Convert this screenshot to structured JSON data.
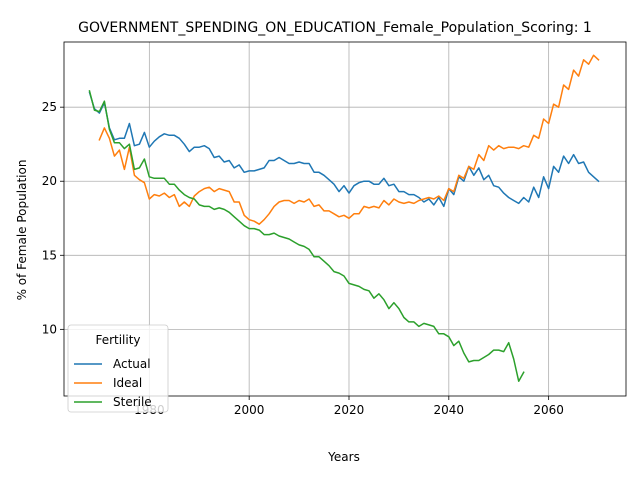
{
  "chart_data": {
    "type": "line",
    "title": "GOVERNMENT_SPENDING_ON_EDUCATION_Female_Population_Scoring: 1",
    "xlabel": "Years",
    "ylabel": "% of Female Population",
    "xlim": [
      1962.9,
      2075.5
    ],
    "ylim": [
      5.5,
      29.4
    ],
    "xticks": [
      1980,
      2000,
      2020,
      2040,
      2060
    ],
    "yticks": [
      10,
      15,
      20,
      25
    ],
    "grid": true,
    "legend": {
      "title": "Fertility",
      "placement": "lower-left"
    },
    "series": [
      {
        "name": "Actual",
        "color": "#1f77b4",
        "x": [
          1968,
          1969,
          1970,
          1971,
          1972,
          1973,
          1974,
          1975,
          1976,
          1977,
          1978,
          1979,
          1980,
          1981,
          1982,
          1983,
          1984,
          1985,
          1986,
          1987,
          1988,
          1989,
          1990,
          1991,
          1992,
          1993,
          1994,
          1995,
          1996,
          1997,
          1998,
          1999,
          2000,
          2001,
          2002,
          2003,
          2004,
          2005,
          2006,
          2007,
          2008,
          2009,
          2010,
          2011,
          2012,
          2013,
          2014,
          2015,
          2016,
          2017,
          2018,
          2019,
          2020,
          2021,
          2022,
          2023,
          2024,
          2025,
          2026,
          2027,
          2028,
          2029,
          2030,
          2031,
          2032,
          2033,
          2034,
          2035,
          2036,
          2037,
          2038,
          2039,
          2040,
          2041,
          2042,
          2043,
          2044,
          2045,
          2046,
          2047,
          2048,
          2049,
          2050,
          2051,
          2052,
          2053,
          2054,
          2055,
          2056,
          2057,
          2058,
          2059,
          2060,
          2061,
          2062,
          2063,
          2064,
          2065,
          2066,
          2067,
          2068,
          2069,
          2070
        ],
        "values": [
          26.0,
          24.9,
          24.6,
          25.3,
          23.6,
          22.8,
          22.9,
          22.9,
          23.9,
          22.4,
          22.5,
          23.3,
          22.3,
          22.7,
          23.0,
          23.2,
          23.1,
          23.1,
          22.9,
          22.5,
          22.0,
          22.3,
          22.3,
          22.4,
          22.2,
          21.6,
          21.7,
          21.3,
          21.4,
          20.9,
          21.1,
          20.6,
          20.7,
          20.7,
          20.8,
          20.9,
          21.4,
          21.4,
          21.6,
          21.4,
          21.2,
          21.2,
          21.3,
          21.2,
          21.2,
          20.6,
          20.6,
          20.4,
          20.1,
          19.8,
          19.3,
          19.7,
          19.2,
          19.7,
          19.9,
          20.0,
          20.0,
          19.8,
          19.8,
          20.2,
          19.7,
          19.8,
          19.3,
          19.3,
          19.1,
          19.1,
          18.9,
          18.6,
          18.8,
          18.4,
          18.9,
          18.3,
          19.5,
          19.1,
          20.3,
          20.0,
          21.0,
          20.4,
          20.9,
          20.1,
          20.4,
          19.7,
          19.6,
          19.2,
          18.9,
          18.7,
          18.5,
          18.9,
          18.6,
          19.6,
          18.9,
          20.3,
          19.5,
          21.0,
          20.6,
          21.7,
          21.2,
          21.8,
          21.2,
          21.3,
          20.6,
          20.3,
          20.0
        ]
      },
      {
        "name": "Ideal",
        "color": "#ff7f0e",
        "x": [
          1970,
          1971,
          1972,
          1973,
          1974,
          1975,
          1976,
          1977,
          1978,
          1979,
          1980,
          1981,
          1982,
          1983,
          1984,
          1985,
          1986,
          1987,
          1988,
          1989,
          1990,
          1991,
          1992,
          1993,
          1994,
          1995,
          1996,
          1997,
          1998,
          1999,
          2000,
          2001,
          2002,
          2003,
          2004,
          2005,
          2006,
          2007,
          2008,
          2009,
          2010,
          2011,
          2012,
          2013,
          2014,
          2015,
          2016,
          2017,
          2018,
          2019,
          2020,
          2021,
          2022,
          2023,
          2024,
          2025,
          2026,
          2027,
          2028,
          2029,
          2030,
          2031,
          2032,
          2033,
          2034,
          2035,
          2036,
          2037,
          2038,
          2039,
          2040,
          2041,
          2042,
          2043,
          2044,
          2045,
          2046,
          2047,
          2048,
          2049,
          2050,
          2051,
          2052,
          2053,
          2054,
          2055,
          2056,
          2057,
          2058,
          2059,
          2060,
          2061,
          2062,
          2063,
          2064,
          2065,
          2066,
          2067,
          2068,
          2069,
          2070
        ],
        "values": [
          22.8,
          23.6,
          22.9,
          21.7,
          22.1,
          20.8,
          22.3,
          20.4,
          20.1,
          19.9,
          18.8,
          19.1,
          19.0,
          19.2,
          18.9,
          19.1,
          18.3,
          18.6,
          18.3,
          19.0,
          19.3,
          19.5,
          19.6,
          19.3,
          19.5,
          19.4,
          19.3,
          18.6,
          18.6,
          17.7,
          17.4,
          17.3,
          17.1,
          17.4,
          17.8,
          18.3,
          18.6,
          18.7,
          18.7,
          18.5,
          18.7,
          18.6,
          18.8,
          18.3,
          18.4,
          18.0,
          18.0,
          17.8,
          17.6,
          17.7,
          17.5,
          17.8,
          17.8,
          18.3,
          18.2,
          18.3,
          18.2,
          18.7,
          18.4,
          18.8,
          18.6,
          18.5,
          18.6,
          18.5,
          18.7,
          18.8,
          18.9,
          18.8,
          19.0,
          18.7,
          19.5,
          19.3,
          20.4,
          20.2,
          21.0,
          20.8,
          21.8,
          21.4,
          22.4,
          22.1,
          22.4,
          22.2,
          22.3,
          22.3,
          22.2,
          22.4,
          22.3,
          23.1,
          22.9,
          24.2,
          23.9,
          25.2,
          25.0,
          26.5,
          26.2,
          27.5,
          27.1,
          28.2,
          27.9,
          28.5,
          28.2
        ]
      },
      {
        "name": "Sterile",
        "color": "#2ca02c",
        "x": [
          1968,
          1969,
          1970,
          1971,
          1972,
          1973,
          1974,
          1975,
          1976,
          1977,
          1978,
          1979,
          1980,
          1981,
          1982,
          1983,
          1984,
          1985,
          1986,
          1987,
          1988,
          1989,
          1990,
          1991,
          1992,
          1993,
          1994,
          1995,
          1996,
          1997,
          1998,
          1999,
          2000,
          2001,
          2002,
          2003,
          2004,
          2005,
          2006,
          2007,
          2008,
          2009,
          2010,
          2011,
          2012,
          2013,
          2014,
          2015,
          2016,
          2017,
          2018,
          2019,
          2020,
          2021,
          2022,
          2023,
          2024,
          2025,
          2026,
          2027,
          2028,
          2029,
          2030,
          2031,
          2032,
          2033,
          2034,
          2035,
          2036,
          2037,
          2038,
          2039,
          2040,
          2041,
          2042,
          2043,
          2044,
          2045,
          2046,
          2047,
          2048,
          2049,
          2050,
          2051,
          2052,
          2053,
          2054,
          2055
        ],
        "values": [
          26.1,
          24.8,
          24.7,
          25.4,
          23.5,
          22.6,
          22.6,
          22.2,
          22.5,
          20.8,
          20.9,
          21.5,
          20.3,
          20.2,
          20.2,
          20.2,
          19.8,
          19.8,
          19.4,
          19.1,
          18.9,
          18.8,
          18.4,
          18.3,
          18.3,
          18.1,
          18.2,
          18.1,
          17.9,
          17.6,
          17.3,
          17.0,
          16.8,
          16.8,
          16.7,
          16.4,
          16.4,
          16.5,
          16.3,
          16.2,
          16.1,
          15.9,
          15.7,
          15.6,
          15.4,
          14.9,
          14.9,
          14.6,
          14.3,
          13.9,
          13.8,
          13.6,
          13.1,
          13.0,
          12.9,
          12.7,
          12.6,
          12.1,
          12.4,
          12.0,
          11.4,
          11.8,
          11.4,
          10.8,
          10.5,
          10.5,
          10.2,
          10.4,
          10.3,
          10.2,
          9.7,
          9.7,
          9.5,
          8.9,
          9.2,
          8.4,
          7.8,
          7.9,
          7.9,
          8.1,
          8.3,
          8.6,
          8.6,
          8.5,
          9.1,
          8.0,
          6.5,
          7.1
        ]
      }
    ]
  }
}
